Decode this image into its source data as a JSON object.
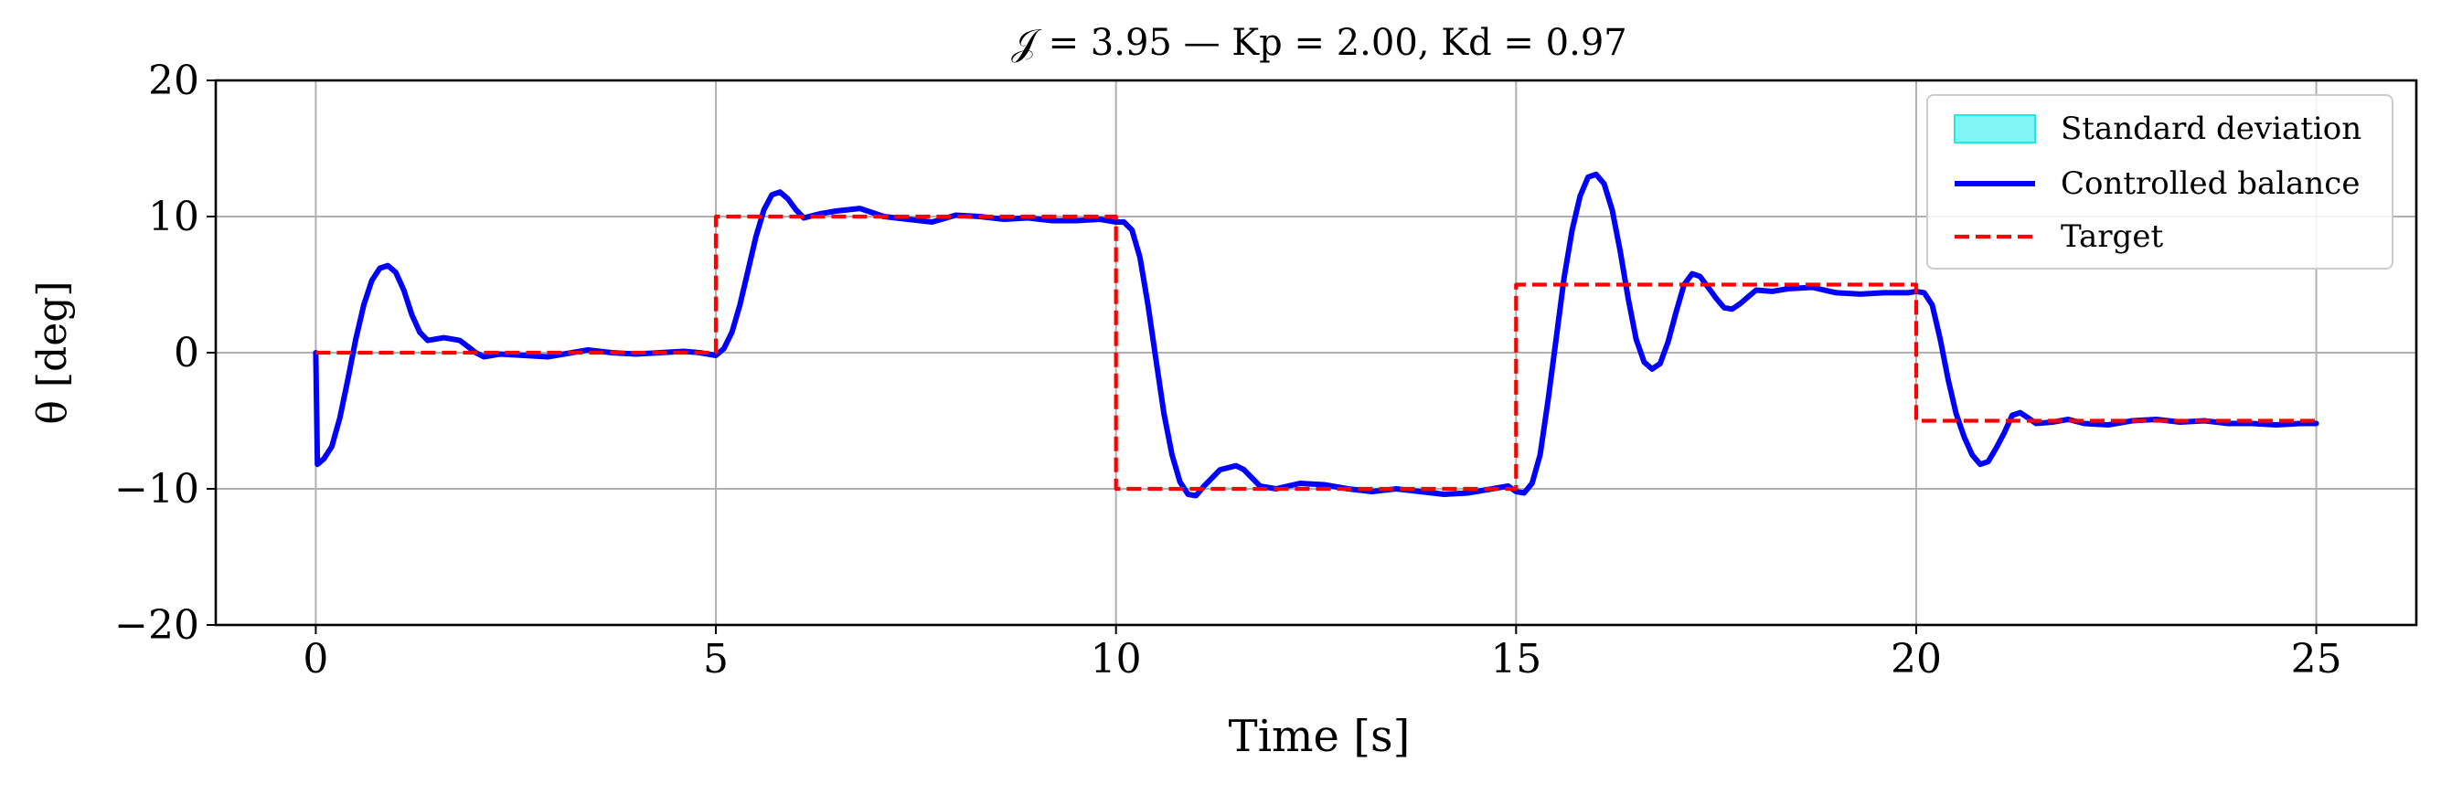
{
  "chart_data": {
    "type": "line",
    "title": "𝒥 = 3.95 — Kp = 2.00, Kd = 0.97",
    "xlabel": "Time [s]",
    "ylabel": "θ [deg]",
    "xlim": [
      -1.25,
      26.25
    ],
    "ylim": [
      -20,
      20
    ],
    "grid": true,
    "x_ticks": [
      0,
      5,
      10,
      15,
      20,
      25
    ],
    "x_tick_labels": [
      "0",
      "5",
      "10",
      "15",
      "20",
      "25"
    ],
    "y_ticks": [
      -20,
      -10,
      0,
      10,
      20
    ],
    "y_tick_labels": [
      "−20",
      "−10",
      "0",
      "10",
      "20"
    ],
    "legend_position": "top-right",
    "legend": [
      {
        "label": "Standard deviation",
        "kind": "patch",
        "color": "#7ff5f5",
        "edge": "#26e6e6"
      },
      {
        "label": "Controlled balance",
        "kind": "solid",
        "color": "#0000ff"
      },
      {
        "label": "Target",
        "kind": "dashed",
        "color": "#ff0000"
      }
    ],
    "series": [
      {
        "name": "Controlled balance",
        "color": "#0000ff",
        "style": "solid",
        "x": [
          0,
          0.02,
          0.1,
          0.2,
          0.3,
          0.4,
          0.5,
          0.6,
          0.7,
          0.8,
          0.9,
          1.0,
          1.1,
          1.2,
          1.3,
          1.4,
          1.6,
          1.8,
          2.0,
          2.1,
          2.3,
          2.6,
          2.9,
          3.2,
          3.4,
          3.7,
          4.0,
          4.3,
          4.6,
          4.8,
          5.0,
          5.1,
          5.2,
          5.3,
          5.4,
          5.5,
          5.6,
          5.7,
          5.8,
          5.9,
          6.0,
          6.1,
          6.3,
          6.5,
          6.8,
          7.1,
          7.4,
          7.7,
          8.0,
          8.3,
          8.6,
          8.9,
          9.2,
          9.5,
          9.8,
          10.0,
          10.1,
          10.2,
          10.3,
          10.4,
          10.5,
          10.6,
          10.7,
          10.8,
          10.9,
          11.0,
          11.1,
          11.3,
          11.5,
          11.6,
          11.8,
          12.0,
          12.3,
          12.6,
          12.9,
          13.2,
          13.5,
          13.8,
          14.1,
          14.4,
          14.7,
          14.9,
          15.0,
          15.1,
          15.2,
          15.3,
          15.4,
          15.5,
          15.6,
          15.7,
          15.8,
          15.9,
          16.0,
          16.1,
          16.2,
          16.3,
          16.4,
          16.5,
          16.6,
          16.7,
          16.8,
          16.9,
          17.0,
          17.1,
          17.2,
          17.3,
          17.4,
          17.5,
          17.6,
          17.7,
          17.8,
          17.9,
          18.0,
          18.2,
          18.4,
          18.7,
          19.0,
          19.3,
          19.6,
          19.9,
          20.0,
          20.1,
          20.2,
          20.3,
          20.4,
          20.5,
          20.6,
          20.7,
          20.8,
          20.9,
          21.0,
          21.1,
          21.2,
          21.3,
          21.4,
          21.5,
          21.7,
          21.9,
          22.1,
          22.4,
          22.7,
          23.0,
          23.3,
          23.6,
          23.9,
          24.2,
          24.5,
          24.8,
          25.0
        ],
        "y": [
          0,
          -8.2,
          -7.8,
          -6.9,
          -4.8,
          -2.0,
          1.0,
          3.5,
          5.3,
          6.2,
          6.4,
          5.9,
          4.6,
          2.8,
          1.5,
          0.9,
          1.1,
          0.9,
          0.0,
          -0.3,
          -0.1,
          -0.2,
          -0.3,
          0.0,
          0.2,
          0.0,
          -0.1,
          0.0,
          0.1,
          0.0,
          -0.2,
          0.3,
          1.5,
          3.5,
          6.0,
          8.5,
          10.5,
          11.6,
          11.8,
          11.3,
          10.5,
          9.9,
          10.2,
          10.4,
          10.6,
          10.0,
          9.8,
          9.6,
          10.1,
          10.0,
          9.8,
          9.9,
          9.7,
          9.7,
          9.8,
          9.6,
          9.6,
          9.0,
          7.0,
          3.5,
          -0.5,
          -4.5,
          -7.5,
          -9.5,
          -10.4,
          -10.5,
          -9.8,
          -8.6,
          -8.3,
          -8.6,
          -9.8,
          -10.0,
          -9.6,
          -9.7,
          -10.0,
          -10.2,
          -10.0,
          -10.2,
          -10.4,
          -10.3,
          -10.0,
          -9.8,
          -10.2,
          -10.3,
          -9.6,
          -7.5,
          -3.5,
          1.0,
          5.5,
          9.0,
          11.5,
          12.9,
          13.1,
          12.4,
          10.5,
          7.5,
          4.0,
          1.0,
          -0.7,
          -1.2,
          -0.8,
          0.8,
          3.0,
          5.0,
          5.8,
          5.6,
          4.8,
          4.0,
          3.3,
          3.2,
          3.6,
          4.1,
          4.6,
          4.5,
          4.7,
          4.8,
          4.4,
          4.3,
          4.4,
          4.4,
          4.5,
          4.4,
          3.5,
          1.0,
          -2.0,
          -4.5,
          -6.2,
          -7.5,
          -8.2,
          -8.0,
          -7.0,
          -5.9,
          -4.6,
          -4.4,
          -4.8,
          -5.2,
          -5.1,
          -4.9,
          -5.2,
          -5.3,
          -5.0,
          -4.9,
          -5.1,
          -5.0,
          -5.2,
          -5.2,
          -5.3,
          -5.2,
          -5.2
        ]
      },
      {
        "name": "Target",
        "color": "#ff0000",
        "style": "dashed",
        "x": [
          0,
          5,
          5,
          10,
          10,
          15,
          15,
          20,
          20,
          25
        ],
        "y": [
          0,
          0,
          10,
          10,
          -10,
          -10,
          5,
          5,
          -5,
          -5
        ]
      }
    ]
  }
}
